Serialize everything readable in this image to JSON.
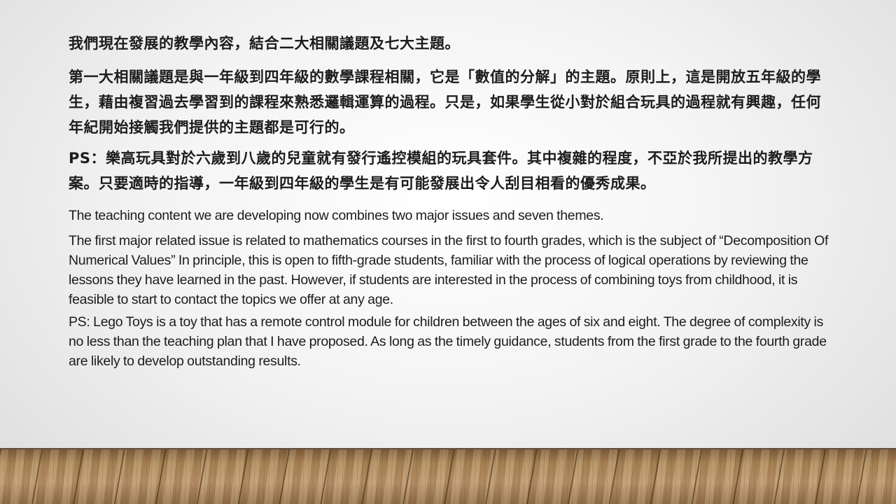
{
  "slide": {
    "zh_paragraphs": [
      "我們現在發展的教學內容，結合二大相關議題及七大主題。",
      "第一大相關議題是與一年級到四年級的數學課程相關，它是「數值的分解」的主題。原則上，這是開放五年級的學生，藉由複習過去學習到的課程來熟悉邏輯運算的過程。只是，如果學生從小對於組合玩具的過程就有興趣，任何年紀開始接觸我們提供的主題都是可行的。",
      "PS：樂高玩具對於六歲到八歲的兒童就有發行遙控模組的玩具套件。其中複雜的程度，不亞於我所提出的教學方案。只要適時的指導，一年級到四年級的學生是有可能發展出令人刮目相看的優秀成果。"
    ],
    "en_paragraphs": [
      "The teaching content we are developing now combines two major issues and seven themes.",
      "The first major related issue is related to mathematics courses in the first to fourth grades, which is the subject of “Decomposition Of Numerical Values” In principle, this is open to fifth-grade students, familiar with the process of logical operations by reviewing the lessons they have learned in the past. However, if students are interested in the process of combining toys from childhood, it is feasible to start to contact the topics we offer at any age.",
      "PS: Lego Toys is a toy that has a remote control module for children between the ages of six and eight. The degree of complexity is no less than the teaching plan that I have proposed. As long as the timely guidance, students from the first grade to the fourth grade are likely to develop outstanding results."
    ]
  },
  "colors": {
    "text": "#1c1c1c",
    "background": "#f4f4f4",
    "floor": "#a98558"
  }
}
